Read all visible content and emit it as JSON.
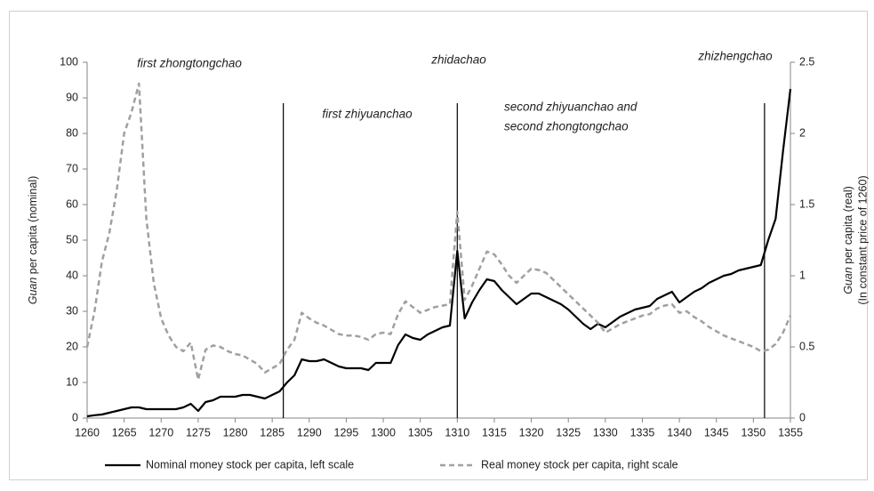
{
  "chart_data": {
    "type": "line",
    "annotations": [
      "first zhongtongchao",
      "first zhiyuanchao",
      "zhidachao",
      "second zhiyuanchao and",
      "second zhongtongchao",
      "zhizhengchao"
    ],
    "ylabel_italic": "Guan",
    "ylabel_rest": " per capita (nominal)",
    "y2label_italic": "Guan",
    "y2label_rest": " per capita (real)",
    "y2label_line2": "(In constant price of 1260)",
    "vlines": [
      1286.5,
      1310,
      1351.5
    ],
    "x": [
      1260,
      1261,
      1262,
      1263,
      1264,
      1265,
      1266,
      1267,
      1268,
      1269,
      1270,
      1271,
      1272,
      1273,
      1274,
      1275,
      1276,
      1277,
      1278,
      1279,
      1280,
      1281,
      1282,
      1283,
      1284,
      1285,
      1286,
      1287,
      1288,
      1289,
      1290,
      1291,
      1292,
      1293,
      1294,
      1295,
      1296,
      1297,
      1298,
      1299,
      1300,
      1301,
      1302,
      1303,
      1304,
      1305,
      1306,
      1307,
      1308,
      1309,
      1310,
      1311,
      1312,
      1313,
      1314,
      1315,
      1316,
      1317,
      1318,
      1319,
      1320,
      1321,
      1322,
      1323,
      1324,
      1325,
      1326,
      1327,
      1328,
      1329,
      1330,
      1331,
      1332,
      1333,
      1334,
      1335,
      1336,
      1337,
      1338,
      1339,
      1340,
      1341,
      1342,
      1343,
      1344,
      1345,
      1346,
      1347,
      1348,
      1349,
      1350,
      1351,
      1352,
      1353,
      1354,
      1355
    ],
    "series": [
      {
        "name": "Nominal money stock per capita, left scale",
        "color": "#000000",
        "dash": false,
        "values": [
          0.5,
          0.8,
          1,
          1.5,
          2,
          2.5,
          3,
          3,
          2.5,
          2.5,
          2.5,
          2.5,
          2.5,
          3,
          4,
          2,
          4.5,
          5,
          6,
          6,
          6,
          6.5,
          6.5,
          6,
          5.5,
          6.5,
          7.5,
          10,
          12,
          16.5,
          16,
          16,
          16.5,
          15.5,
          14.5,
          14,
          14,
          14,
          13.5,
          15.5,
          15.5,
          15.5,
          20.5,
          23.5,
          22.5,
          22,
          23.5,
          24.5,
          25.5,
          26,
          47,
          28,
          32.5,
          36,
          39,
          38.5,
          36,
          34,
          32,
          33.5,
          35,
          35,
          34,
          33,
          32,
          30.5,
          28.5,
          26.5,
          25,
          26.5,
          25.5,
          27,
          28.5,
          29.5,
          30.5,
          31,
          31.5,
          33.5,
          34.5,
          35.5,
          32.5,
          34,
          35.5,
          36.5,
          38,
          39,
          40,
          40.5,
          41.5,
          42,
          42.5,
          43,
          50,
          56,
          75,
          92.5
        ]
      },
      {
        "name": "Real money stock per capita, right scale",
        "color": "#a0a0a0",
        "dash": true,
        "axis": "y2",
        "values": [
          0.5,
          0.75,
          1.1,
          1.3,
          1.6,
          2.0,
          2.15,
          2.35,
          1.4,
          0.95,
          0.7,
          0.58,
          0.5,
          0.47,
          0.53,
          0.27,
          0.48,
          0.51,
          0.5,
          0.47,
          0.45,
          0.44,
          0.41,
          0.38,
          0.32,
          0.35,
          0.38,
          0.48,
          0.55,
          0.74,
          0.7,
          0.67,
          0.65,
          0.62,
          0.59,
          0.58,
          0.58,
          0.57,
          0.55,
          0.59,
          0.6,
          0.59,
          0.73,
          0.82,
          0.78,
          0.74,
          0.76,
          0.78,
          0.79,
          0.8,
          1.45,
          0.83,
          0.93,
          1.05,
          1.17,
          1.15,
          1.08,
          1.0,
          0.95,
          1.0,
          1.05,
          1.04,
          1.02,
          0.97,
          0.92,
          0.87,
          0.82,
          0.77,
          0.72,
          0.67,
          0.6,
          0.63,
          0.66,
          0.68,
          0.7,
          0.72,
          0.73,
          0.77,
          0.79,
          0.8,
          0.74,
          0.75,
          0.71,
          0.68,
          0.64,
          0.61,
          0.58,
          0.56,
          0.54,
          0.52,
          0.5,
          0.47,
          0.48,
          0.52,
          0.6,
          0.72
        ]
      }
    ],
    "xlim": [
      1260,
      1355
    ],
    "xticks": [
      1260,
      1265,
      1270,
      1275,
      1280,
      1285,
      1290,
      1295,
      1300,
      1305,
      1310,
      1315,
      1320,
      1325,
      1330,
      1335,
      1340,
      1345,
      1350,
      1355
    ],
    "ylim": [
      0,
      100
    ],
    "yticks": [
      0,
      10,
      20,
      30,
      40,
      50,
      60,
      70,
      80,
      90,
      100
    ],
    "y2lim": [
      0,
      2.5
    ],
    "y2ticks": [
      0,
      0.5,
      1,
      1.5,
      2,
      2.5
    ],
    "grid": false,
    "legend": "bottom"
  }
}
